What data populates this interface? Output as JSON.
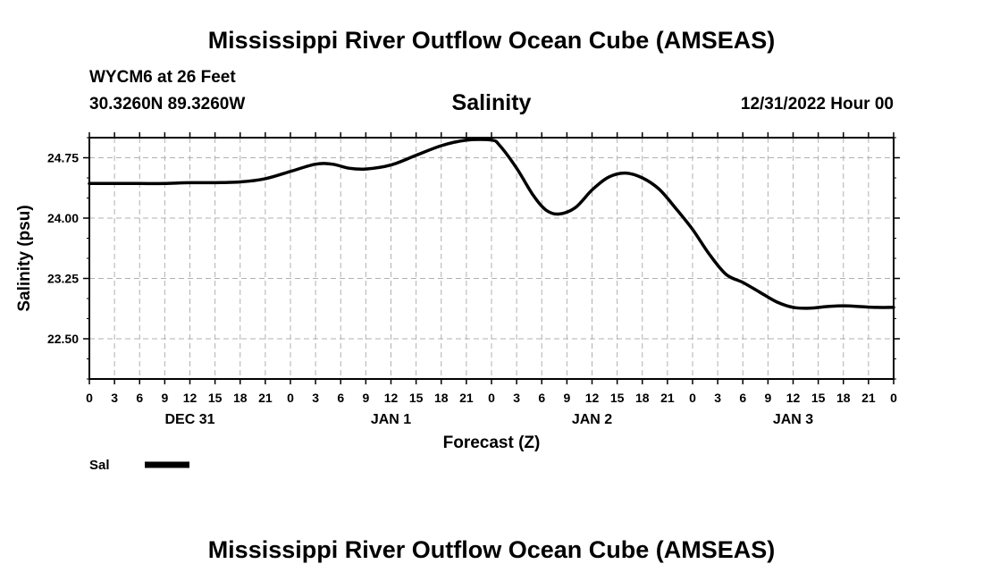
{
  "header": {
    "title": "Mississippi River Outflow Ocean Cube (AMSEAS)",
    "station": "WYCM6 at 26 Feet",
    "coords": "30.3260N  89.3260W",
    "chart_title": "Salinity",
    "datetime": "12/31/2022 Hour 00"
  },
  "footer": {
    "title": "Mississippi River Outflow Ocean Cube (AMSEAS)"
  },
  "colors": {
    "line": "#000000",
    "grid": "#b0b0b0",
    "frame": "#000000"
  },
  "chart_data": {
    "type": "line",
    "title": "Salinity",
    "xlabel": "Forecast (Z)",
    "ylabel": "Salinity (psu)",
    "xlim": [
      0,
      96
    ],
    "ylim": [
      22.0,
      25.0
    ],
    "x_ticks": [
      0,
      3,
      6,
      9,
      12,
      15,
      18,
      21,
      24,
      27,
      30,
      33,
      36,
      39,
      42,
      45,
      48,
      51,
      54,
      57,
      60,
      63,
      66,
      69,
      72,
      75,
      78,
      81,
      84,
      87,
      90,
      93,
      96
    ],
    "x_tick_labels": [
      "0",
      "3",
      "6",
      "9",
      "12",
      "15",
      "18",
      "21",
      "0",
      "3",
      "6",
      "9",
      "12",
      "15",
      "18",
      "21",
      "0",
      "3",
      "6",
      "9",
      "12",
      "15",
      "18",
      "21",
      "0",
      "3",
      "6",
      "9",
      "12",
      "15",
      "18",
      "21",
      "0"
    ],
    "y_ticks": [
      22.5,
      23.25,
      24.0,
      24.75
    ],
    "y_tick_labels": [
      "22.50",
      "23.25",
      "24.00",
      "24.75"
    ],
    "y_minor_step": 0.25,
    "day_labels": [
      {
        "x": 12,
        "label": "DEC 31"
      },
      {
        "x": 36,
        "label": "JAN 1"
      },
      {
        "x": 60,
        "label": "JAN 2"
      },
      {
        "x": 84,
        "label": "JAN 3"
      }
    ],
    "grid": true,
    "legend": [
      {
        "label": "Sal",
        "position": "bottom-left"
      }
    ],
    "series": [
      {
        "name": "Sal",
        "x": [
          0,
          3,
          6,
          9,
          12,
          15,
          18,
          21,
          24,
          27,
          29,
          31,
          33,
          36,
          39,
          42,
          45,
          48,
          49,
          51,
          53,
          54.5,
          56,
          58,
          60,
          62,
          64,
          66,
          68,
          70,
          72,
          74,
          76,
          78,
          80,
          82,
          84,
          86,
          88,
          90,
          92,
          94,
          96
        ],
        "y": [
          24.43,
          24.43,
          24.43,
          24.43,
          24.44,
          24.44,
          24.45,
          24.49,
          24.58,
          24.67,
          24.67,
          24.62,
          24.61,
          24.66,
          24.78,
          24.9,
          24.97,
          24.97,
          24.9,
          24.62,
          24.28,
          24.1,
          24.05,
          24.13,
          24.35,
          24.51,
          24.56,
          24.5,
          24.36,
          24.12,
          23.86,
          23.55,
          23.3,
          23.2,
          23.08,
          22.96,
          22.89,
          22.88,
          22.9,
          22.91,
          22.9,
          22.89,
          22.89
        ]
      }
    ]
  }
}
